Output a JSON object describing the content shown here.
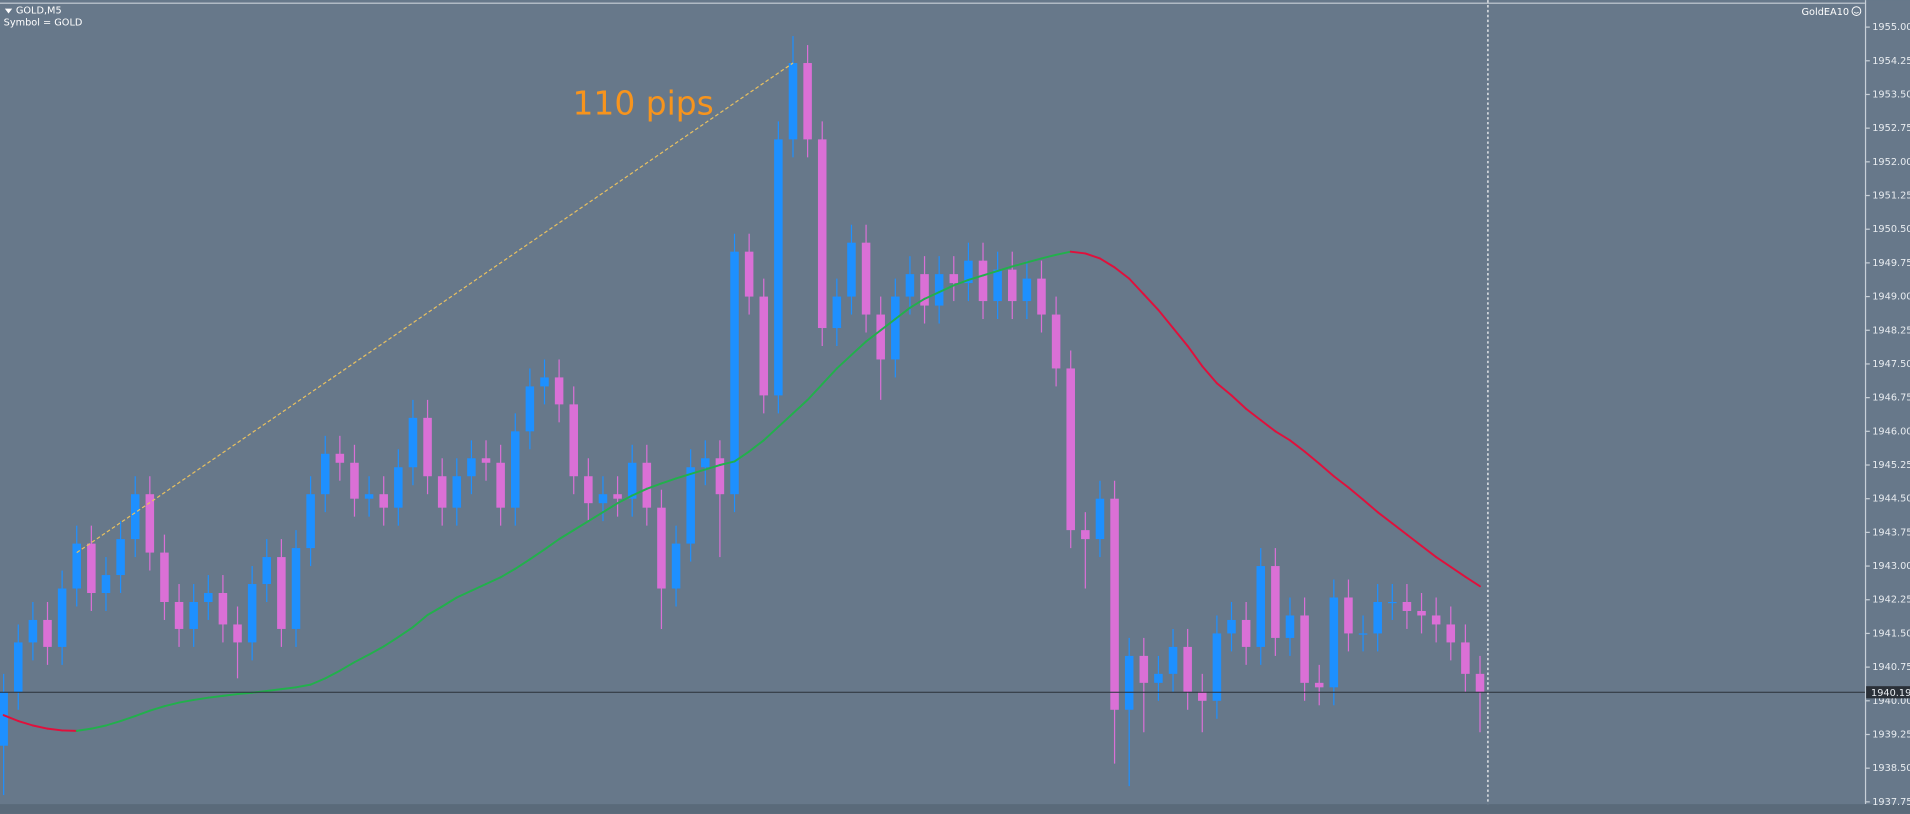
{
  "chart_data": {
    "type": "candlestick",
    "title": "GOLD,M5",
    "subtitle": "Symbol = GOLD",
    "indicator": "GoldEA10",
    "up_color": "#1e90ff",
    "down_color": "#da70d6",
    "ylim": [
      1937.7,
      1955.6
    ],
    "yticks": [
      {
        "value": 1937.75,
        "label": "1937.75"
      },
      {
        "value": 1938.5,
        "label": "1938.50"
      },
      {
        "value": 1939.25,
        "label": "1939.25"
      },
      {
        "value": 1940.0,
        "label": "1940.00"
      },
      {
        "value": 1940.75,
        "label": "1940.75"
      },
      {
        "value": 1941.5,
        "label": "1941.50"
      },
      {
        "value": 1942.25,
        "label": "1942.25"
      },
      {
        "value": 1943.0,
        "label": "1943.00"
      },
      {
        "value": 1943.75,
        "label": "1943.75"
      },
      {
        "value": 1944.5,
        "label": "1944.50"
      },
      {
        "value": 1945.25,
        "label": "1945.25"
      },
      {
        "value": 1946.0,
        "label": "1946.00"
      },
      {
        "value": 1946.75,
        "label": "1946.75"
      },
      {
        "value": 1947.5,
        "label": "1947.50"
      },
      {
        "value": 1948.25,
        "label": "1948.25"
      },
      {
        "value": 1949.0,
        "label": "1949.00"
      },
      {
        "value": 1949.75,
        "label": "1949.75"
      },
      {
        "value": 1950.5,
        "label": "1950.50"
      },
      {
        "value": 1951.25,
        "label": "1951.25"
      },
      {
        "value": 1952.0,
        "label": "1952.00"
      },
      {
        "value": 1952.75,
        "label": "1952.75"
      },
      {
        "value": 1953.5,
        "label": "1953.50"
      },
      {
        "value": 1954.25,
        "label": "1954.25"
      },
      {
        "value": 1955.0,
        "label": "1955.00"
      }
    ],
    "current_price": {
      "value": 1940.19,
      "label": "1940.19"
    },
    "open": [
      1939.0,
      1940.2,
      1941.3,
      1941.8,
      1941.2,
      1942.5,
      1943.5,
      1942.4,
      1942.8,
      1943.6,
      1944.6,
      1943.3,
      1942.2,
      1941.6,
      1942.2,
      1942.4,
      1941.7,
      1941.3,
      1942.6,
      1943.2,
      1941.6,
      1943.4,
      1944.6,
      1945.5,
      1945.3,
      1944.5,
      1944.6,
      1944.3,
      1945.2,
      1946.3,
      1945.0,
      1944.3,
      1945.0,
      1945.4,
      1945.3,
      1944.3,
      1946.0,
      1947.0,
      1947.2,
      1946.6,
      1945.0,
      1944.4,
      1944.6,
      1944.5,
      1945.3,
      1944.3,
      1942.5,
      1943.5,
      1945.2,
      1945.4,
      1944.6,
      1950.0,
      1949.0,
      1946.8,
      1952.5,
      1954.2,
      1952.5,
      1948.3,
      1949.0,
      1950.2,
      1948.6,
      1947.6,
      1949.0,
      1949.5,
      1948.8,
      1949.5,
      1949.3,
      1949.8,
      1948.9,
      1949.6,
      1948.9,
      1949.4,
      1948.6,
      1947.4,
      1943.8,
      1943.6,
      1944.5,
      1939.8,
      1941.0,
      1940.4,
      1940.6,
      1941.2,
      1940.2,
      1940.0,
      1941.5,
      1941.8,
      1941.2,
      1943.0,
      1941.4,
      1941.9,
      1940.4,
      1940.3,
      1942.3,
      1941.5,
      1941.5,
      1942.2,
      1942.2,
      1942.0,
      1941.9,
      1941.7,
      1941.3,
      1940.6
    ],
    "high": [
      1940.6,
      1941.7,
      1942.2,
      1942.2,
      1942.9,
      1943.9,
      1943.9,
      1943.2,
      1944.0,
      1945.0,
      1945.0,
      1943.7,
      1942.6,
      1942.6,
      1942.8,
      1942.8,
      1942.1,
      1943.0,
      1943.6,
      1943.6,
      1943.8,
      1945.0,
      1945.9,
      1945.9,
      1945.7,
      1945.0,
      1945.0,
      1945.6,
      1946.7,
      1946.7,
      1945.4,
      1945.4,
      1945.8,
      1945.8,
      1945.7,
      1946.4,
      1947.4,
      1947.6,
      1947.6,
      1947.0,
      1945.4,
      1945.0,
      1945.0,
      1945.7,
      1945.7,
      1944.7,
      1943.9,
      1945.6,
      1945.8,
      1945.8,
      1950.4,
      1950.4,
      1949.4,
      1952.9,
      1954.8,
      1954.6,
      1952.9,
      1949.4,
      1950.6,
      1950.6,
      1949.0,
      1949.4,
      1949.9,
      1949.9,
      1949.9,
      1949.9,
      1950.2,
      1950.2,
      1950.0,
      1950.0,
      1949.8,
      1949.8,
      1949.0,
      1947.8,
      1944.2,
      1944.9,
      1944.9,
      1941.4,
      1941.4,
      1941.0,
      1941.6,
      1941.6,
      1940.6,
      1941.9,
      1942.2,
      1942.2,
      1943.4,
      1943.4,
      1942.3,
      1942.3,
      1940.8,
      1942.7,
      1942.7,
      1941.9,
      1942.6,
      1942.6,
      1942.6,
      1942.4,
      1942.3,
      1942.1,
      1941.7,
      1941.0
    ],
    "low": [
      1937.9,
      1939.8,
      1940.9,
      1940.8,
      1940.8,
      1942.1,
      1942.0,
      1942.0,
      1942.4,
      1943.2,
      1942.9,
      1941.8,
      1941.2,
      1941.2,
      1941.8,
      1941.3,
      1940.5,
      1940.9,
      1942.2,
      1941.2,
      1941.2,
      1943.0,
      1944.2,
      1944.9,
      1944.1,
      1944.1,
      1943.9,
      1943.9,
      1944.8,
      1944.6,
      1943.9,
      1943.9,
      1944.6,
      1944.9,
      1943.9,
      1943.9,
      1945.6,
      1946.6,
      1946.2,
      1944.6,
      1944.0,
      1944.0,
      1944.1,
      1944.1,
      1943.9,
      1941.6,
      1942.1,
      1943.1,
      1944.8,
      1943.2,
      1944.2,
      1948.6,
      1946.4,
      1946.4,
      1952.1,
      1952.1,
      1947.9,
      1947.9,
      1948.6,
      1948.2,
      1946.7,
      1947.2,
      1948.6,
      1948.4,
      1948.4,
      1948.9,
      1948.9,
      1948.5,
      1948.5,
      1948.5,
      1948.5,
      1948.2,
      1947.0,
      1943.4,
      1942.5,
      1943.2,
      1938.6,
      1938.1,
      1939.3,
      1940.0,
      1940.2,
      1939.8,
      1939.3,
      1939.6,
      1941.1,
      1940.8,
      1940.8,
      1941.0,
      1941.0,
      1940.0,
      1939.9,
      1939.9,
      1941.1,
      1941.1,
      1941.1,
      1941.8,
      1941.6,
      1941.5,
      1941.3,
      1940.9,
      1940.2,
      1939.3
    ],
    "close": [
      1940.2,
      1941.3,
      1941.8,
      1941.2,
      1942.5,
      1943.5,
      1942.4,
      1942.8,
      1943.6,
      1944.6,
      1943.3,
      1942.2,
      1941.6,
      1942.2,
      1942.4,
      1941.7,
      1941.3,
      1942.6,
      1943.2,
      1941.6,
      1943.4,
      1944.6,
      1945.5,
      1945.3,
      1944.5,
      1944.6,
      1944.3,
      1945.2,
      1946.3,
      1945.0,
      1944.3,
      1945.0,
      1945.4,
      1945.3,
      1944.3,
      1946.0,
      1947.0,
      1947.2,
      1946.6,
      1945.0,
      1944.4,
      1944.6,
      1944.5,
      1945.3,
      1944.3,
      1942.5,
      1943.5,
      1945.2,
      1945.4,
      1944.6,
      1950.0,
      1949.0,
      1946.8,
      1952.5,
      1954.2,
      1952.5,
      1948.3,
      1949.0,
      1950.2,
      1948.6,
      1947.6,
      1949.0,
      1949.5,
      1948.8,
      1949.5,
      1949.3,
      1949.8,
      1948.9,
      1949.6,
      1948.9,
      1949.4,
      1948.6,
      1947.4,
      1943.8,
      1943.6,
      1944.5,
      1939.8,
      1941.0,
      1940.4,
      1940.6,
      1941.2,
      1940.2,
      1940.0,
      1941.5,
      1941.8,
      1941.2,
      1943.0,
      1941.4,
      1941.9,
      1940.4,
      1940.3,
      1942.3,
      1941.5,
      1941.5,
      1942.2,
      1942.2,
      1942.0,
      1941.9,
      1941.7,
      1941.3,
      1940.6,
      1940.2
    ],
    "ma": {
      "up_color": "#22b04c",
      "down_color": "#e0103c",
      "values": [
        1939.68,
        1939.55,
        1939.45,
        1939.38,
        1939.34,
        1939.33,
        1939.38,
        1939.45,
        1939.55,
        1939.66,
        1939.78,
        1939.88,
        1939.96,
        1940.02,
        1940.07,
        1940.11,
        1940.15,
        1940.18,
        1940.22,
        1940.26,
        1940.3,
        1940.36,
        1940.5,
        1940.67,
        1940.86,
        1941.03,
        1941.21,
        1941.42,
        1941.64,
        1941.91,
        1942.1,
        1942.3,
        1942.45,
        1942.6,
        1942.75,
        1942.94,
        1943.15,
        1943.37,
        1943.6,
        1943.8,
        1944.0,
        1944.2,
        1944.4,
        1944.57,
        1944.72,
        1944.84,
        1944.95,
        1945.05,
        1945.15,
        1945.25,
        1945.33,
        1945.55,
        1945.8,
        1946.1,
        1946.4,
        1946.7,
        1947.05,
        1947.4,
        1947.7,
        1948.0,
        1948.25,
        1948.5,
        1948.75,
        1948.95,
        1949.1,
        1949.25,
        1949.37,
        1949.47,
        1949.57,
        1949.67,
        1949.76,
        1949.85,
        1949.93,
        1950.0,
        1949.96,
        1949.85,
        1949.65,
        1949.4,
        1949.05,
        1948.7,
        1948.3,
        1947.9,
        1947.45,
        1947.07,
        1946.8,
        1946.5,
        1946.25,
        1946.0,
        1945.8,
        1945.55,
        1945.28,
        1945.0,
        1944.75,
        1944.48,
        1944.2,
        1943.95,
        1943.7,
        1943.45,
        1943.2,
        1942.98,
        1942.76,
        1942.55
      ]
    },
    "annotation": {
      "text": "110 pips",
      "color": "#f7941d",
      "line_color": "#e8c060",
      "x1": 5,
      "y1": 1943.3,
      "x2": 54,
      "y2": 1954.2
    }
  }
}
